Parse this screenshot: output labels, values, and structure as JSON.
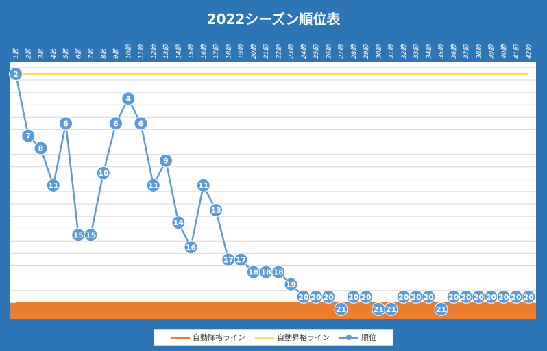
{
  "chart_data": {
    "type": "line",
    "title": "2022シーズン順位表",
    "categories": [
      "1節",
      "2節",
      "3節",
      "4節",
      "5節",
      "6節",
      "7節",
      "8節",
      "9節",
      "10節",
      "11節",
      "12節",
      "13節",
      "14節",
      "15節",
      "16節",
      "17節",
      "18節",
      "19節",
      "20節",
      "21節",
      "22節",
      "23節",
      "24節",
      "25節",
      "26節",
      "27節",
      "28節",
      "29節",
      "30節",
      "31節",
      "32節",
      "33節",
      "34節",
      "35節",
      "36節",
      "37節",
      "38節",
      "39節",
      "40節",
      "41節",
      "42節"
    ],
    "series": [
      {
        "name": "自動降格ライン",
        "values": [
          20.5,
          20.5,
          20.5,
          20.5,
          20.5,
          20.5,
          20.5,
          20.5,
          20.5,
          20.5,
          20.5,
          20.5,
          20.5,
          20.5,
          20.5,
          20.5,
          20.5,
          20.5,
          20.5,
          20.5,
          20.5,
          20.5,
          20.5,
          20.5,
          20.5,
          20.5,
          20.5,
          20.5,
          20.5,
          20.5,
          20.5,
          20.5,
          20.5,
          20.5,
          20.5,
          20.5,
          20.5,
          20.5,
          20.5,
          20.5,
          20.5,
          20.5
        ],
        "color": "#ed7d31"
      },
      {
        "name": "自動昇格ライン",
        "values": [
          2,
          2,
          2,
          2,
          2,
          2,
          2,
          2,
          2,
          2,
          2,
          2,
          2,
          2,
          2,
          2,
          2,
          2,
          2,
          2,
          2,
          2,
          2,
          2,
          2,
          2,
          2,
          2,
          2,
          2,
          2,
          2,
          2,
          2,
          2,
          2,
          2,
          2,
          2,
          2,
          2,
          2
        ],
        "color": "#ffd966"
      },
      {
        "name": "順位",
        "values": [
          2,
          7,
          8,
          11,
          6,
          15,
          15,
          10,
          6,
          4,
          6,
          11,
          9,
          14,
          16,
          11,
          13,
          17,
          17,
          18,
          18,
          18,
          19,
          20,
          20,
          20,
          21,
          20,
          20,
          21,
          21,
          20,
          20,
          20,
          21,
          20,
          20,
          20,
          20,
          20,
          20,
          20
        ],
        "color": "#5b9bd5"
      }
    ],
    "ylim": [
      1,
      22
    ],
    "y_inverted": true,
    "grid": true,
    "legend_position": "bottom",
    "colors": {
      "background": "#2e75b6",
      "plot": "#ffffff",
      "relegation_zone": "#ed7d31"
    }
  }
}
